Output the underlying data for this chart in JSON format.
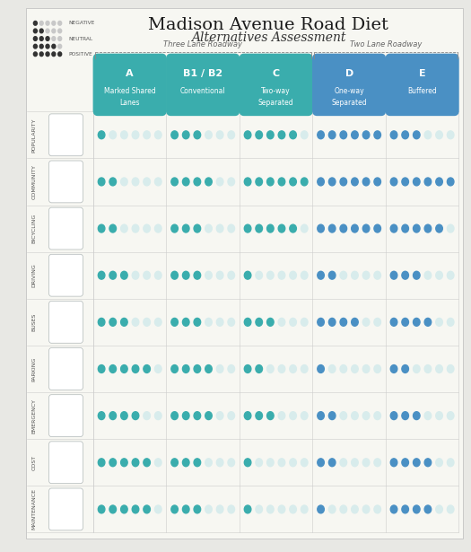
{
  "title": "Madison Avenue Road Diet",
  "subtitle": "Alternatives Assessment",
  "col_headers": [
    {
      "letter": "A",
      "text": "Marked Shared\nLanes",
      "color": "#3aadad"
    },
    {
      "letter": "B1 / B2",
      "text": "Conventional",
      "color": "#3aadad"
    },
    {
      "letter": "C",
      "text": "Two-way\nSeparated",
      "color": "#3aadad"
    },
    {
      "letter": "D",
      "text": "One-way\nSeparated",
      "color": "#4a90c4"
    },
    {
      "letter": "E",
      "text": "Buffered",
      "color": "#4a90c4"
    }
  ],
  "three_lane_label": "Three Lane Roadway",
  "two_lane_label": "Two Lane Roadway",
  "row_labels": [
    "POPULARITY",
    "COMMUNITY",
    "BICYCLING",
    "DRIVING",
    "BUSES",
    "PARKING",
    "EMERGENCY",
    "COST",
    "MAINTENANCE"
  ],
  "scores": [
    [
      1,
      3,
      5,
      6,
      3
    ],
    [
      2,
      4,
      6,
      6,
      6
    ],
    [
      2,
      3,
      5,
      6,
      5
    ],
    [
      3,
      3,
      1,
      2,
      3
    ],
    [
      3,
      3,
      3,
      4,
      4
    ],
    [
      5,
      4,
      2,
      1,
      2
    ],
    [
      4,
      4,
      3,
      2,
      3
    ],
    [
      5,
      3,
      1,
      2,
      4
    ],
    [
      5,
      3,
      1,
      1,
      4
    ]
  ],
  "max_dots": 6,
  "teal": "#3aadad",
  "blue": "#4a90c4",
  "empty": "#d8ecec",
  "dark": "#333333",
  "bg": "#e8e8e4",
  "panel": "#f7f7f2",
  "grid_color": "#cccccc",
  "title_fs": 14,
  "subtitle_fs": 10,
  "row_label_fs": 4.5,
  "header_letter_fs": 8,
  "header_text_fs": 5.5,
  "legend_label_fs": 4.2,
  "lane_label_fs": 6
}
